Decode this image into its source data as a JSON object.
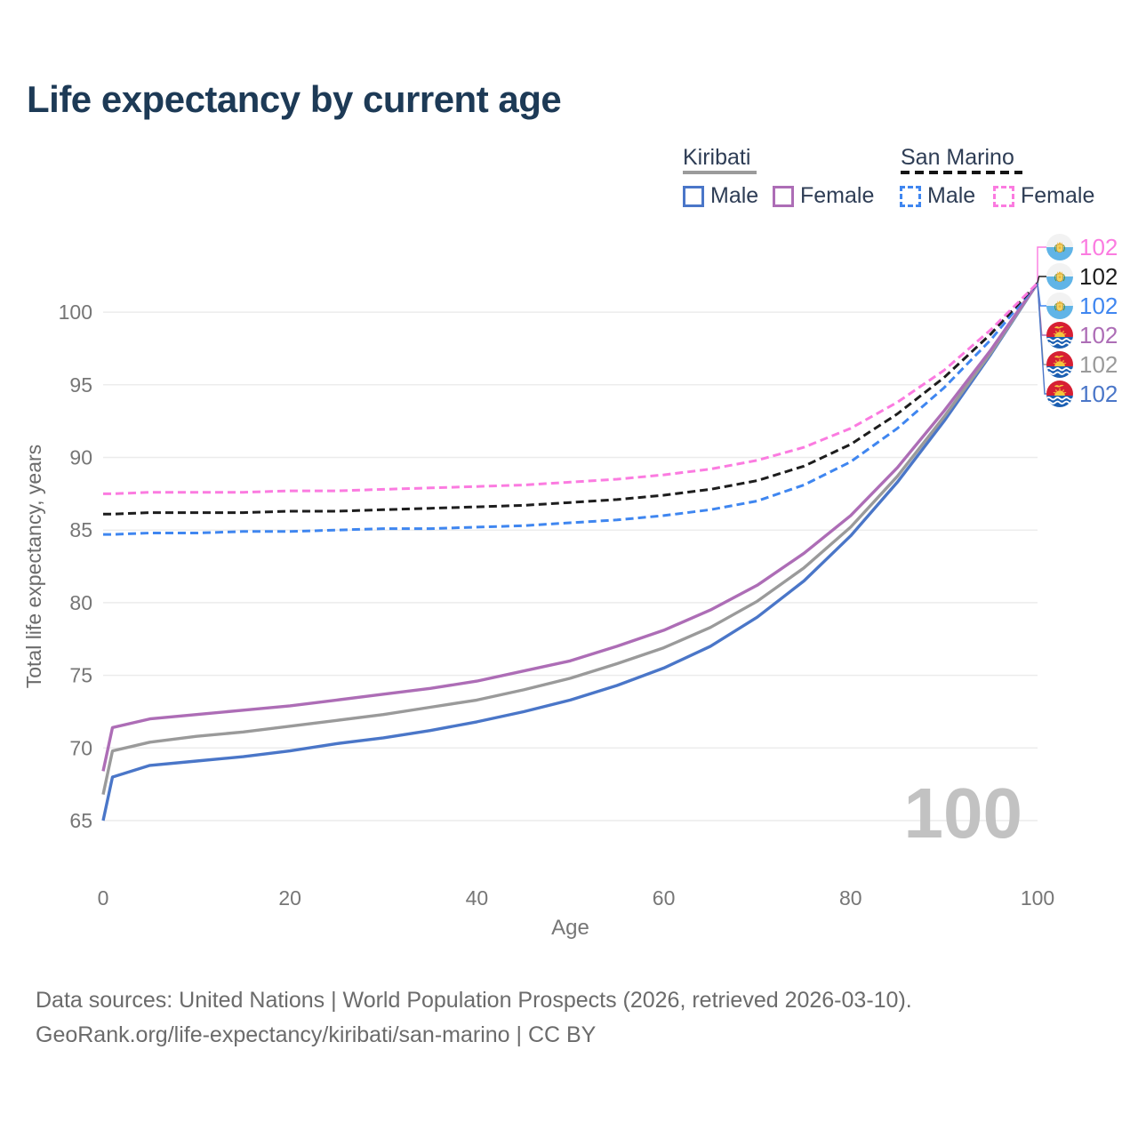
{
  "title": "Life expectancy by current age",
  "legend": {
    "groups": [
      {
        "label": "Kiribati",
        "line_style": "solid",
        "underline_color": "#9b9b9b",
        "items": [
          {
            "label": "Male",
            "color": "#4a76c8",
            "dash": false
          },
          {
            "label": "Female",
            "color": "#ad6db6",
            "dash": false
          }
        ]
      },
      {
        "label": "San Marino",
        "line_style": "dashed",
        "underline_color": "#141414",
        "items": [
          {
            "label": "Male",
            "color": "#3f86f0",
            "dash": true
          },
          {
            "label": "Female",
            "color": "#fb7be0",
            "dash": true
          }
        ]
      }
    ]
  },
  "chart_data": {
    "type": "line",
    "title": "Life expectancy by current age",
    "xlabel": "Age",
    "ylabel": "Total life expectancy, years",
    "xlim": [
      0,
      100
    ],
    "ylim": [
      65,
      103.5
    ],
    "xticks": [
      0,
      20,
      40,
      60,
      80,
      100
    ],
    "yticks": [
      65,
      70,
      75,
      80,
      85,
      90,
      95,
      100
    ],
    "grid": "horizontal",
    "watermark_age": "100",
    "x": [
      0,
      1,
      5,
      10,
      15,
      20,
      25,
      30,
      35,
      40,
      45,
      50,
      55,
      60,
      65,
      70,
      75,
      80,
      85,
      90,
      95,
      100
    ],
    "series": [
      {
        "name": "Kiribati Male",
        "country": "Kiribati",
        "sex": "Male",
        "color": "#4a76c8",
        "dash": false,
        "values": [
          65.0,
          68.0,
          68.8,
          69.1,
          69.4,
          69.8,
          70.3,
          70.7,
          71.2,
          71.8,
          72.5,
          73.3,
          74.3,
          75.5,
          77.0,
          79.0,
          81.5,
          84.6,
          88.3,
          92.5,
          97.1,
          102.0
        ]
      },
      {
        "name": "Kiribati Total",
        "country": "Kiribati",
        "sex": "Both",
        "color": "#9a9a9a",
        "dash": false,
        "values": [
          66.8,
          69.8,
          70.4,
          70.8,
          71.1,
          71.5,
          71.9,
          72.3,
          72.8,
          73.3,
          74.0,
          74.8,
          75.8,
          76.9,
          78.3,
          80.1,
          82.4,
          85.2,
          88.7,
          92.8,
          97.2,
          102.0
        ]
      },
      {
        "name": "Kiribati Female",
        "country": "Kiribati",
        "sex": "Female",
        "color": "#ad6db6",
        "dash": false,
        "values": [
          68.4,
          71.4,
          72.0,
          72.3,
          72.6,
          72.9,
          73.3,
          73.7,
          74.1,
          74.6,
          75.3,
          76.0,
          77.0,
          78.1,
          79.5,
          81.2,
          83.4,
          86.0,
          89.3,
          93.2,
          97.4,
          102.0
        ]
      },
      {
        "name": "San Marino Male",
        "country": "San Marino",
        "sex": "Male",
        "color": "#3f86f0",
        "dash": true,
        "values": [
          84.7,
          84.7,
          84.8,
          84.8,
          84.9,
          84.9,
          85.0,
          85.1,
          85.1,
          85.2,
          85.3,
          85.5,
          85.7,
          86.0,
          86.4,
          87.0,
          88.1,
          89.7,
          92.0,
          94.8,
          98.1,
          102.0
        ]
      },
      {
        "name": "San Marino Total",
        "country": "San Marino",
        "sex": "Both",
        "color": "#1d1d1d",
        "dash": true,
        "values": [
          86.1,
          86.1,
          86.2,
          86.2,
          86.2,
          86.3,
          86.3,
          86.4,
          86.5,
          86.6,
          86.7,
          86.9,
          87.1,
          87.4,
          87.8,
          88.4,
          89.4,
          90.9,
          93.0,
          95.5,
          98.5,
          102.0
        ]
      },
      {
        "name": "San Marino Female",
        "country": "San Marino",
        "sex": "Female",
        "color": "#fb7be0",
        "dash": true,
        "values": [
          87.5,
          87.5,
          87.6,
          87.6,
          87.6,
          87.7,
          87.7,
          87.8,
          87.9,
          88.0,
          88.1,
          88.3,
          88.5,
          88.8,
          89.2,
          89.8,
          90.7,
          92.0,
          93.8,
          96.0,
          98.8,
          102.0
        ]
      }
    ],
    "end_labels": [
      {
        "flag": "san-marino",
        "series": "San Marino Female",
        "value": "102",
        "color": "#fb7be0"
      },
      {
        "flag": "san-marino",
        "series": "San Marino Total",
        "value": "102",
        "color": "#1d1d1d"
      },
      {
        "flag": "san-marino",
        "series": "San Marino Male",
        "value": "102",
        "color": "#3f86f0"
      },
      {
        "flag": "kiribati",
        "series": "Kiribati Female",
        "value": "102",
        "color": "#ad6db6"
      },
      {
        "flag": "kiribati",
        "series": "Kiribati Total",
        "value": "102",
        "color": "#9a9a9a"
      },
      {
        "flag": "kiribati",
        "series": "Kiribati Male",
        "value": "102",
        "color": "#4a76c8"
      }
    ]
  },
  "footer": {
    "line1": "Data sources: United Nations | World Population Prospects (2026, retrieved 2026-03-10).",
    "line2": "GeoRank.org/life-expectancy/kiribati/san-marino | CC BY"
  }
}
